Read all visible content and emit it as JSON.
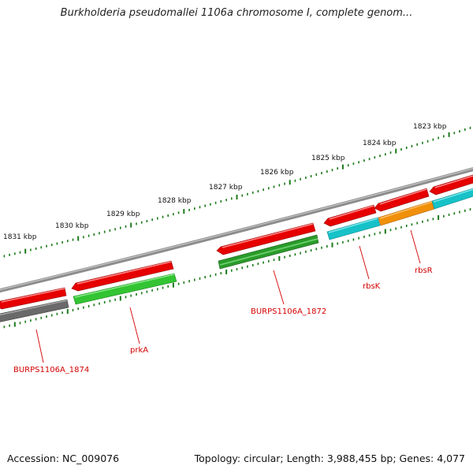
{
  "header": {
    "title": "Burkholderia pseudomallei 1106a chromosome I, complete genom..."
  },
  "footer": {
    "accession": "Accession: NC_009076",
    "summary": "Topology: circular; Length: 3,988,455 bp; Genes: 4,077"
  },
  "colors": {
    "backbone": "#8c8c8c",
    "ticks": "#1a7a1a",
    "label_red": "#d40000",
    "red_feature": "#e60000",
    "green_feature": "#33c433",
    "dark_green_feature": "#2a9a2a",
    "cyan_feature": "#16c2c8",
    "orange_feature": "#f0900a",
    "gray_feature": "#6a6a6a"
  },
  "scale": {
    "kbp_labels": [
      "1831 kbp",
      "1830 kbp",
      "1829 kbp",
      "1828 kbp",
      "1827 kbp",
      "1826 kbp",
      "1825 kbp",
      "1824 kbp",
      "1823 kbp"
    ]
  },
  "gene_labels": [
    "BURPS1106A_1874",
    "prkA",
    "BURPS1106A_1872",
    "rbsK",
    "rbsR"
  ]
}
